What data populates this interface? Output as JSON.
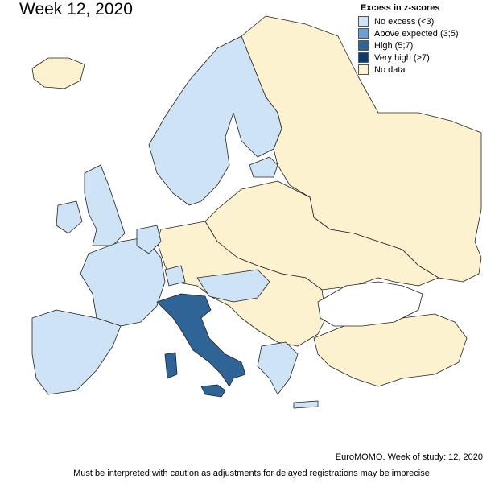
{
  "title": "Week 12, 2020",
  "legend": {
    "title": "Excess in z-scores",
    "items": [
      {
        "label": "No excess (<3)",
        "color": "#cfe3f7"
      },
      {
        "label": "Above expected (3;5)",
        "color": "#6b9fd2"
      },
      {
        "label": "High (5;7)",
        "color": "#2f6497"
      },
      {
        "label": "Very high (>7)",
        "color": "#0c3d6b"
      },
      {
        "label": "No data",
        "color": "#fdf2d0"
      }
    ]
  },
  "source": "EuroMOMO. Week of study: 12, 2020",
  "caveat": "Must be interpreted with caution as adjustments for delayed registrations may be imprecise"
}
